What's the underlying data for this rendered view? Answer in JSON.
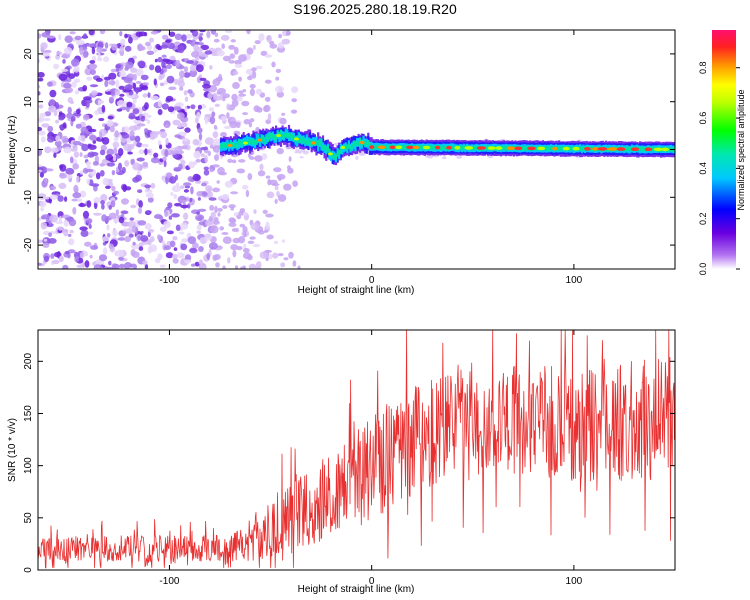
{
  "title": "S196.2025.280.18.19.R20",
  "chart_data": [
    {
      "type": "heatmap",
      "name": "spectrogram",
      "xlabel": "Height of straight line (km)",
      "ylabel": "Frequency (Hz)",
      "xlim": [
        -165,
        150
      ],
      "ylim": [
        -25,
        25
      ],
      "xticks": [
        -100,
        0,
        100
      ],
      "yticks": [
        -20,
        -10,
        0,
        10,
        20
      ],
      "description_of_values": "noise scatter below ~-75 km; narrow band near 0 Hz from -75 km onward, strongest along 0 Hz for x > 0",
      "band_track": [
        {
          "x": -75,
          "y": 0.5
        },
        {
          "x": -60,
          "y": 1.5
        },
        {
          "x": -45,
          "y": 3.0
        },
        {
          "x": -35,
          "y": 2.0
        },
        {
          "x": -25,
          "y": 1.0
        },
        {
          "x": -19,
          "y": -1.5
        },
        {
          "x": -14,
          "y": 0.5
        },
        {
          "x": -5,
          "y": 1.5
        },
        {
          "x": 0,
          "y": 0.5
        },
        {
          "x": 150,
          "y": 0.0
        }
      ],
      "colorbar": {
        "label": "Normalized spectral amplitude",
        "range": [
          0,
          0.95
        ],
        "ticks": [
          0.0,
          0.2,
          0.4,
          0.6,
          0.8
        ]
      }
    },
    {
      "type": "line",
      "name": "snr",
      "xlabel": "Height of straight line (km)",
      "ylabel": "SNR (10 * v/v)",
      "xlim": [
        -165,
        150
      ],
      "ylim": [
        0,
        230
      ],
      "xticks": [
        -100,
        0,
        100
      ],
      "yticks": [
        0,
        50,
        100,
        150,
        200
      ],
      "color": "#e83030",
      "envelope": [
        {
          "x": -165,
          "mean": 20,
          "spread": 12
        },
        {
          "x": -70,
          "mean": 20,
          "spread": 14
        },
        {
          "x": -55,
          "mean": 35,
          "spread": 25
        },
        {
          "x": -35,
          "mean": 55,
          "spread": 35
        },
        {
          "x": -15,
          "mean": 80,
          "spread": 45
        },
        {
          "x": 0,
          "mean": 95,
          "spread": 50
        },
        {
          "x": 15,
          "mean": 120,
          "spread": 55
        },
        {
          "x": 40,
          "mean": 145,
          "spread": 55
        },
        {
          "x": 100,
          "mean": 140,
          "spread": 55
        },
        {
          "x": 150,
          "mean": 145,
          "spread": 60
        }
      ]
    }
  ]
}
